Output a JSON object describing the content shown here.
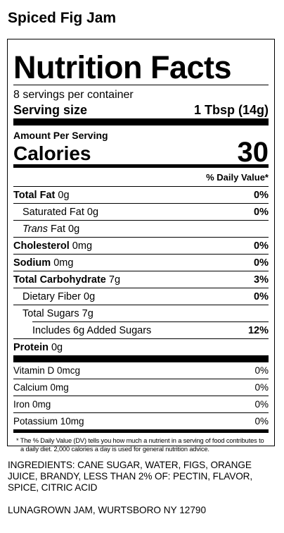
{
  "product_name": "Spiced Fig Jam",
  "panel": {
    "title": "Nutrition Facts",
    "servings_per_container": "8 servings per container",
    "serving_size_label": "Serving size",
    "serving_size_value": "1 Tbsp (14g)",
    "amount_per_serving": "Amount Per Serving",
    "calories_label": "Calories",
    "calories_value": "30",
    "daily_value_header": "% Daily Value*",
    "nutrients": {
      "total_fat": {
        "label": "Total Fat",
        "amount": "0g",
        "dv": "0%"
      },
      "saturated_fat": {
        "label": "Saturated Fat",
        "amount": "0g",
        "dv": "0%"
      },
      "trans_fat": {
        "label_italic": "Trans",
        "label": "Fat",
        "amount": "0g"
      },
      "cholesterol": {
        "label": "Cholesterol",
        "amount": "0mg",
        "dv": "0%"
      },
      "sodium": {
        "label": "Sodium",
        "amount": "0mg",
        "dv": "0%"
      },
      "total_carbohydrate": {
        "label": "Total Carbohydrate",
        "amount": "7g",
        "dv": "3%"
      },
      "dietary_fiber": {
        "label": "Dietary Fiber",
        "amount": "0g",
        "dv": "0%"
      },
      "total_sugars": {
        "label": "Total Sugars",
        "amount": "7g"
      },
      "added_sugars": {
        "label": "Includes 6g Added Sugars",
        "dv": "12%"
      },
      "protein": {
        "label": "Protein",
        "amount": "0g"
      }
    },
    "vitamins": [
      {
        "label": "Vitamin D 0mcg",
        "dv": "0%"
      },
      {
        "label": "Calcium 0mg",
        "dv": "0%"
      },
      {
        "label": "Iron 0mg",
        "dv": "0%"
      },
      {
        "label": "Potassium 10mg",
        "dv": "0%"
      }
    ],
    "footnote": "* The % Daily Value (DV) tells you how much a nutrient in a serving of food contributes to a daily diet. 2,000 calories a day is used for general nutrition advice."
  },
  "ingredients": "INGREDIENTS: CANE SUGAR, WATER, FIGS, ORANGE JUICE, BRANDY, LESS THAN 2% OF: PECTIN, FLAVOR, SPICE, CITRIC ACID",
  "address": "LUNAGROWN JAM, WURTSBORO NY 12790"
}
